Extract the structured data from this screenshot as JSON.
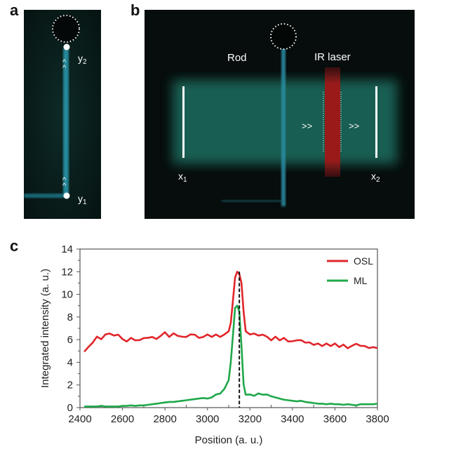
{
  "panels": {
    "a": {
      "label": "a",
      "markers": {
        "top": "y",
        "top_sub": "2",
        "bottom": "y",
        "bottom_sub": "1"
      },
      "arrow_glyph": "^"
    },
    "b": {
      "label": "b",
      "rod_label": "Rod",
      "laser_label": "IR laser",
      "left_marker": "x",
      "left_sub": "1",
      "right_marker": "x",
      "right_sub": "2",
      "arrow_glyph": ">>"
    },
    "c": {
      "label": "c"
    }
  },
  "colors": {
    "osl": "#e0262a",
    "ml": "#1fa84a",
    "glow": "#2fb5a8",
    "laser": "#9a1a1a"
  },
  "chart_data": {
    "type": "line",
    "title": "",
    "xlabel": "Position (a. u.)",
    "ylabel": "Integrated intensity (a. u.)",
    "xlim": [
      2400,
      3800
    ],
    "ylim": [
      0,
      14
    ],
    "xticks": [
      2400,
      2600,
      2800,
      3000,
      3200,
      3400,
      3600,
      3800
    ],
    "yticks": [
      0,
      2,
      4,
      6,
      8,
      10,
      12,
      14
    ],
    "legend": "top-right",
    "grid": false,
    "vline": {
      "x": 3150,
      "style": "dashed"
    },
    "series": [
      {
        "name": "OSL",
        "x": [
          2420,
          2440,
          2460,
          2480,
          2500,
          2520,
          2540,
          2560,
          2580,
          2600,
          2620,
          2640,
          2660,
          2680,
          2700,
          2720,
          2740,
          2760,
          2780,
          2800,
          2820,
          2840,
          2860,
          2880,
          2900,
          2920,
          2940,
          2960,
          2980,
          3000,
          3020,
          3040,
          3060,
          3080,
          3100,
          3110,
          3120,
          3130,
          3140,
          3150,
          3160,
          3170,
          3180,
          3200,
          3220,
          3240,
          3260,
          3280,
          3300,
          3320,
          3340,
          3360,
          3380,
          3400,
          3420,
          3440,
          3460,
          3480,
          3500,
          3520,
          3540,
          3560,
          3580,
          3600,
          3620,
          3640,
          3660,
          3680,
          3700,
          3720,
          3740,
          3760,
          3780,
          3800
        ],
        "values": [
          5.0,
          5.3,
          5.8,
          6.2,
          6.1,
          6.4,
          6.6,
          6.3,
          6.5,
          6.0,
          5.9,
          6.1,
          6.0,
          5.9,
          6.2,
          6.1,
          6.3,
          6.0,
          6.4,
          6.6,
          6.3,
          6.5,
          6.4,
          6.2,
          6.3,
          6.4,
          6.5,
          6.1,
          6.3,
          6.4,
          6.3,
          6.4,
          6.3,
          6.4,
          6.8,
          7.5,
          9.5,
          11.5,
          12.0,
          11.8,
          11.0,
          8.5,
          6.8,
          6.4,
          6.6,
          6.3,
          6.5,
          6.2,
          6.0,
          6.2,
          6.0,
          6.1,
          5.9,
          5.8,
          6.0,
          5.9,
          5.8,
          5.7,
          5.6,
          5.6,
          5.5,
          5.6,
          5.5,
          5.6,
          5.4,
          5.5,
          5.3,
          5.4,
          5.7,
          5.4,
          5.5,
          5.2,
          5.4,
          5.2
        ]
      },
      {
        "name": "ML",
        "x": [
          2420,
          2440,
          2460,
          2480,
          2500,
          2520,
          2540,
          2560,
          2580,
          2600,
          2620,
          2640,
          2660,
          2680,
          2700,
          2720,
          2740,
          2760,
          2780,
          2800,
          2820,
          2840,
          2860,
          2880,
          2900,
          2920,
          2940,
          2960,
          2980,
          3000,
          3020,
          3040,
          3060,
          3080,
          3100,
          3110,
          3120,
          3130,
          3140,
          3150,
          3160,
          3170,
          3180,
          3200,
          3220,
          3240,
          3260,
          3280,
          3300,
          3320,
          3340,
          3360,
          3380,
          3400,
          3420,
          3440,
          3460,
          3480,
          3500,
          3520,
          3540,
          3560,
          3580,
          3600,
          3620,
          3640,
          3660,
          3680,
          3700,
          3720,
          3740,
          3760,
          3780,
          3800
        ],
        "values": [
          0.1,
          0.1,
          0.1,
          0.1,
          0.15,
          0.1,
          0.1,
          0.1,
          0.1,
          0.15,
          0.15,
          0.2,
          0.15,
          0.2,
          0.2,
          0.25,
          0.3,
          0.35,
          0.4,
          0.45,
          0.5,
          0.5,
          0.55,
          0.6,
          0.65,
          0.7,
          0.75,
          0.8,
          0.85,
          0.8,
          0.9,
          1.1,
          1.3,
          1.6,
          2.5,
          4.0,
          6.5,
          8.8,
          9.0,
          8.5,
          5.5,
          2.0,
          1.2,
          1.1,
          1.1,
          1.2,
          1.2,
          1.1,
          1.0,
          0.9,
          0.8,
          0.7,
          0.65,
          0.6,
          0.55,
          0.6,
          0.5,
          0.45,
          0.4,
          0.35,
          0.35,
          0.3,
          0.35,
          0.3,
          0.3,
          0.25,
          0.3,
          0.25,
          0.2,
          0.3,
          0.3,
          0.3,
          0.3,
          0.35
        ]
      }
    ]
  }
}
